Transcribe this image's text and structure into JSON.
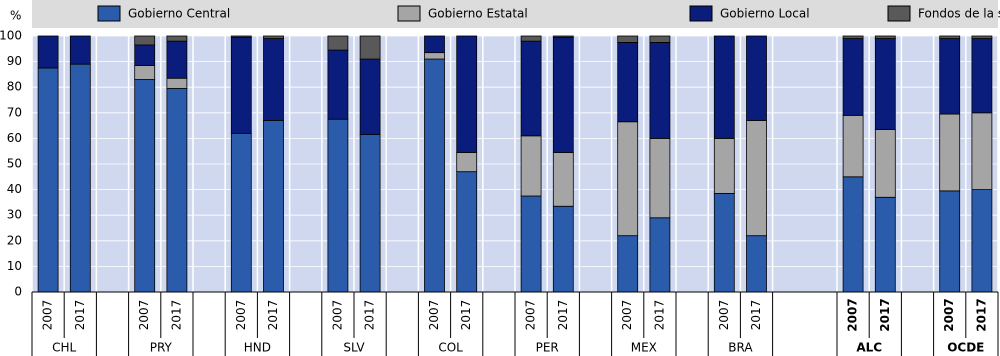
{
  "chart_data": {
    "type": "stacked-bar",
    "y_label": "%",
    "categories": [
      "2007",
      "2017",
      "2007",
      "2017",
      "2007",
      "2017",
      "2007",
      "2017",
      "2007",
      "2017",
      "2007",
      "2017",
      "2007",
      "2017",
      "2007",
      "2017",
      "2007",
      "2017",
      "2007",
      "2017"
    ],
    "groups": [
      "CHL",
      "PRY",
      "HND",
      "SLV",
      "COL",
      "PER",
      "MEX",
      "BRA",
      "ALC",
      "OCDE"
    ],
    "series": [
      {
        "name": "Gobierno Central",
        "color": "#2b5cab",
        "values": [
          87.5,
          89,
          83,
          79.5,
          62,
          67,
          67.5,
          61.5,
          91,
          47,
          37.5,
          33.5,
          22,
          29,
          38.5,
          22,
          45,
          37,
          39.5,
          40
        ]
      },
      {
        "name": "Gobierno Estatal",
        "color": "#a5a5a5",
        "values": [
          0,
          0,
          5.5,
          4,
          0,
          0,
          0,
          0,
          2.5,
          7.5,
          23.5,
          21,
          44.5,
          31,
          21.5,
          45,
          24,
          26.5,
          30,
          30
        ]
      },
      {
        "name": "Gobierno Local",
        "color": "#0b1d7c",
        "values": [
          12.5,
          11,
          8,
          14.5,
          37.5,
          32,
          27,
          29.5,
          6.5,
          45.5,
          37,
          45,
          31,
          37.5,
          40,
          33,
          30,
          35.5,
          29.5,
          29
        ]
      },
      {
        "name": "Fondos de la seguridad social",
        "color": "#595959",
        "values": [
          0,
          0,
          3.5,
          2,
          0.5,
          1,
          5.5,
          9,
          0,
          0,
          2,
          0.5,
          2.5,
          2.5,
          0,
          0,
          1,
          1,
          1,
          1
        ]
      }
    ],
    "ylim": [
      0,
      100
    ],
    "yticks": [
      0,
      10,
      20,
      30,
      40,
      50,
      60,
      70,
      80,
      90,
      100
    ],
    "grid": true
  }
}
